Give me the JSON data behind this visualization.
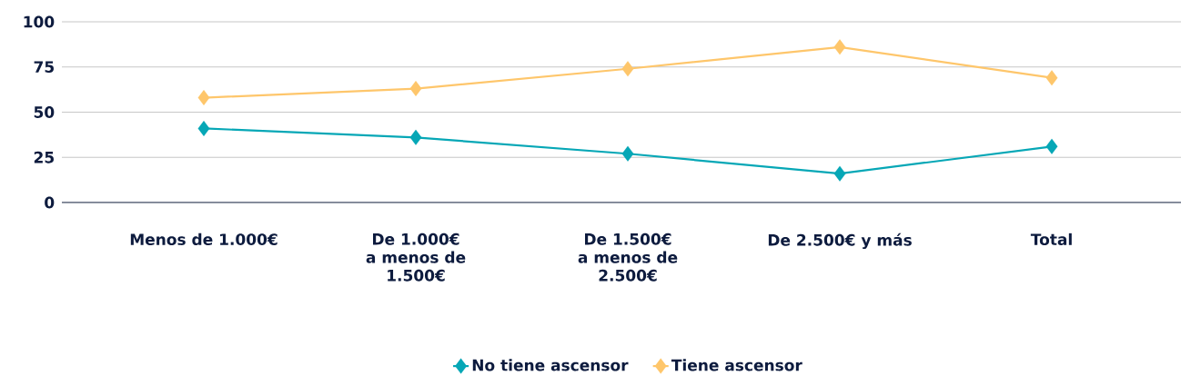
{
  "chart_data": {
    "type": "line",
    "categories": [
      "Menos de 1.000€",
      "De 1.000€ a menos de 1.500€",
      "De 1.500€ a menos de 2.500€",
      "De 2.500€ y más",
      "Total"
    ],
    "series": [
      {
        "name": "No tiene ascensor",
        "color": "#06a7b6",
        "values": [
          41,
          36,
          27,
          16,
          31
        ]
      },
      {
        "name": "Tiene ascensor",
        "color": "#fec66b",
        "values": [
          58,
          63,
          74,
          86,
          69
        ]
      }
    ],
    "ylim": [
      0,
      100
    ],
    "yticks": [
      0,
      25,
      50,
      75,
      100
    ],
    "grid": "y",
    "legend": "bottom",
    "marker": "diamond",
    "line_style": "solid"
  }
}
